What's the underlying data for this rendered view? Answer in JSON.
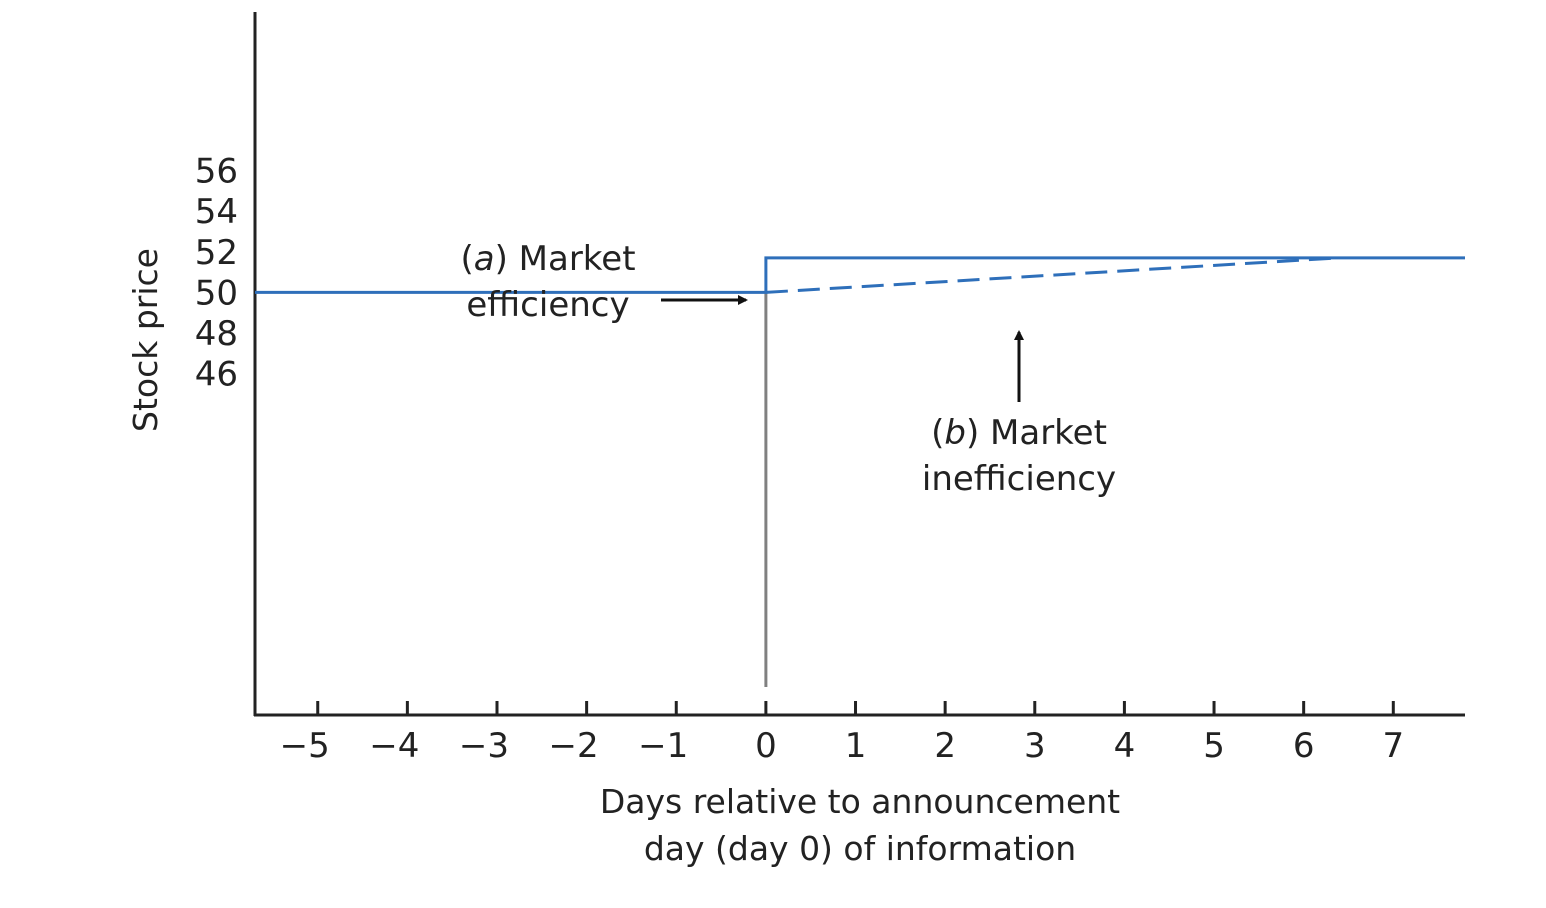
{
  "chart_data": {
    "type": "line",
    "xlabel": [
      "Days relative to announcement",
      "day (day 0) of information"
    ],
    "ylabel": "Stock price",
    "x_ticks": [
      "−5",
      "−4",
      "−3",
      "−2",
      "−1",
      "0",
      "1",
      "2",
      "3",
      "4",
      "5",
      "6",
      "7"
    ],
    "x_tick_values": [
      -5,
      -4,
      -3,
      -2,
      -1,
      0,
      1,
      2,
      3,
      4,
      5,
      6,
      7
    ],
    "y_ticks": [
      "46",
      "48",
      "50",
      "52",
      "54",
      "56"
    ],
    "y_tick_values": [
      46,
      48,
      50,
      52,
      54,
      56
    ],
    "xlim": [
      -5.7,
      7.8
    ],
    "ylim": [
      29.2,
      63.8
    ],
    "grid": false,
    "series": [
      {
        "name": "(a) Market efficiency",
        "style": "solid",
        "color": "#2e6fba",
        "x": [
          -5.7,
          0,
          0,
          7.8
        ],
        "y": [
          50,
          50,
          51.7,
          51.7
        ]
      },
      {
        "name": "(b) Market inefficiency",
        "style": "dashed",
        "color": "#2e6fba",
        "x": [
          0,
          6.4
        ],
        "y": [
          50,
          51.7
        ]
      }
    ],
    "reference_lines": [
      {
        "axis": "x",
        "value": 0,
        "color": "#808080"
      }
    ],
    "annotations": [
      {
        "id": "a",
        "prefix": "(",
        "letter": "a",
        "suffix": ") Market",
        "line2": "efficiency",
        "arrow_direction": "right",
        "points_to": [
          0,
          51.7
        ]
      },
      {
        "id": "b",
        "prefix": "(",
        "letter": "b",
        "suffix": ") Market",
        "line2": "inefficiency",
        "arrow_direction": "up",
        "points_to": [
          2.85,
          50.8
        ]
      }
    ]
  }
}
